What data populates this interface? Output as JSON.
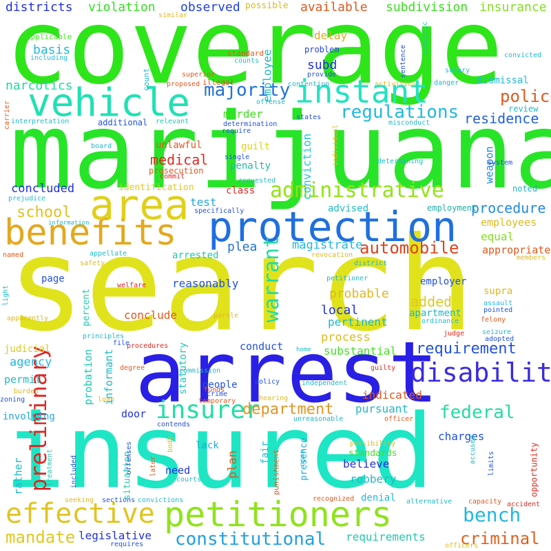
{
  "words": [
    {
      "text": "coverage",
      "color": "#2ee51a"
    },
    {
      "text": "marijuana",
      "color": "#28e428"
    },
    {
      "text": "search",
      "color": "#e0e31b"
    },
    {
      "text": "arrest",
      "color": "#2a1fe4"
    },
    {
      "text": "insured",
      "color": "#1ee6c4"
    },
    {
      "text": "protection",
      "color": "#1f6fe0"
    },
    {
      "text": "vehicle",
      "color": "#20e1b3"
    },
    {
      "text": "benefits",
      "color": "#e3a81e"
    },
    {
      "text": "area",
      "color": "#e0d019"
    },
    {
      "text": "instant",
      "color": "#22e2c2"
    },
    {
      "text": "petitioners",
      "color": "#8fe31c"
    },
    {
      "text": "administrative",
      "color": "#92e319"
    },
    {
      "text": "disability",
      "color": "#3a2be0"
    },
    {
      "text": "effective",
      "color": "#e1c41f"
    },
    {
      "text": "insurer",
      "color": "#1fe0a4"
    },
    {
      "text": "preliminary",
      "color": "#e02622"
    },
    {
      "text": "warrant",
      "color": "#22dca0"
    },
    {
      "text": "regulations",
      "color": "#20b8e0"
    },
    {
      "text": "majority",
      "color": "#1f70e0"
    },
    {
      "text": "police",
      "color": "#e0581e"
    },
    {
      "text": "automobile",
      "color": "#e3401c"
    },
    {
      "text": "department",
      "color": "#e39420"
    },
    {
      "text": "federal",
      "color": "#22dca2"
    },
    {
      "text": "bench",
      "color": "#20b8e0"
    },
    {
      "text": "mandate",
      "color": "#e0c81f"
    },
    {
      "text": "constitutional",
      "color": "#20a0e0"
    },
    {
      "text": "requirement",
      "color": "#2050e0"
    },
    {
      "text": "criminal",
      "color": "#e0601e"
    },
    {
      "text": "residence",
      "color": "#2060e0"
    },
    {
      "text": "school",
      "color": "#e0c21f"
    },
    {
      "text": "procedure",
      "color": "#1f8ae0"
    },
    {
      "text": "medical",
      "color": "#e0281f"
    },
    {
      "text": "districts",
      "color": "#2030e0"
    },
    {
      "text": "violation",
      "color": "#30e01f"
    },
    {
      "text": "observed",
      "color": "#2042e0"
    },
    {
      "text": "available",
      "color": "#e0581e"
    },
    {
      "text": "subdivision",
      "color": "#38e01f"
    },
    {
      "text": "insurance",
      "color": "#82e01f"
    },
    {
      "text": "narcotics",
      "color": "#1fd8a0"
    },
    {
      "text": "basis",
      "color": "#20b8e0"
    },
    {
      "text": "employee",
      "color": "#20b8c8"
    },
    {
      "text": "subd",
      "color": "#2030e0"
    },
    {
      "text": "delay",
      "color": "#e0a81f"
    },
    {
      "text": "problem",
      "color": "#2040e0"
    },
    {
      "text": "murder",
      "color": "#40e01f"
    },
    {
      "text": "dismissal",
      "color": "#20b8e0"
    },
    {
      "text": "review",
      "color": "#20b8c8"
    },
    {
      "text": "concluded",
      "color": "#2030e0"
    },
    {
      "text": "guilt",
      "color": "#e0d01f"
    },
    {
      "text": "penalty",
      "color": "#20b8a8"
    },
    {
      "text": "unlawful",
      "color": "#e0581e"
    },
    {
      "text": "class",
      "color": "#e0281f"
    },
    {
      "text": "test",
      "color": "#1fa8e0"
    },
    {
      "text": "identification",
      "color": "#e0c81f"
    },
    {
      "text": "conviction",
      "color": "#20c8e0"
    },
    {
      "text": "weapon",
      "color": "#1f88e0"
    },
    {
      "text": "noted",
      "color": "#20b0c8"
    },
    {
      "text": "employment",
      "color": "#20b0a8"
    },
    {
      "text": "employees",
      "color": "#e0b81f"
    },
    {
      "text": "advised",
      "color": "#20b8c8"
    },
    {
      "text": "plea",
      "color": "#1f70e0"
    },
    {
      "text": "magistrate",
      "color": "#20b8e0"
    },
    {
      "text": "equal",
      "color": "#82e01f"
    },
    {
      "text": "appropriate",
      "color": "#e0581e"
    },
    {
      "text": "arrested",
      "color": "#20c8b0"
    },
    {
      "text": "reasonably",
      "color": "#2050e0"
    },
    {
      "text": "page",
      "color": "#2050e0"
    },
    {
      "text": "probable",
      "color": "#e0b81f"
    },
    {
      "text": "local",
      "color": "#2030e0"
    },
    {
      "text": "added",
      "color": "#e0c81f"
    },
    {
      "text": "employer",
      "color": "#2050e0"
    },
    {
      "text": "supra",
      "color": "#e0b81f"
    },
    {
      "text": "apartment",
      "color": "#20b8c8"
    },
    {
      "text": "conclude",
      "color": "#e0581e"
    },
    {
      "text": "percent",
      "color": "#20c8b0"
    },
    {
      "text": "pertinent",
      "color": "#20b8c8"
    },
    {
      "text": "process",
      "color": "#e0b81f"
    },
    {
      "text": "substantial",
      "color": "#40e01f"
    },
    {
      "text": "conduct",
      "color": "#2050e0"
    },
    {
      "text": "judicial",
      "color": "#e0c81f"
    },
    {
      "text": "agency",
      "color": "#20b8e0"
    },
    {
      "text": "statutory",
      "color": "#20c8b0"
    },
    {
      "text": "probation",
      "color": "#20c8b0"
    },
    {
      "text": "informant",
      "color": "#20b8c8"
    },
    {
      "text": "permit",
      "color": "#20b8c8"
    },
    {
      "text": "people",
      "color": "#2050e0"
    },
    {
      "text": "door",
      "color": "#2030e0"
    },
    {
      "text": "involving",
      "color": "#1fa8e0"
    },
    {
      "text": "pursuant",
      "color": "#20b8c8"
    },
    {
      "text": "indicated",
      "color": "#e0581e"
    },
    {
      "text": "charges",
      "color": "#2050e0"
    },
    {
      "text": "plan",
      "color": "#e0581e"
    },
    {
      "text": "believe",
      "color": "#2030e0"
    },
    {
      "text": "lack",
      "color": "#1fa8e0"
    },
    {
      "text": "need",
      "color": "#2030e0"
    },
    {
      "text": "fair",
      "color": "#20b8e0"
    },
    {
      "text": "presence",
      "color": "#1fa8e0"
    },
    {
      "text": "rather",
      "color": "#20b8c8"
    },
    {
      "text": "robbery",
      "color": "#20b8c8"
    },
    {
      "text": "standards",
      "color": "#40e01f"
    },
    {
      "text": "denial",
      "color": "#20b8e0"
    },
    {
      "text": "situation",
      "color": "#20c8b0"
    },
    {
      "text": "requirements",
      "color": "#20c8b0"
    },
    {
      "text": "legislative",
      "color": "#2030e0"
    },
    {
      "text": "punishment",
      "color": "#e0581e"
    },
    {
      "text": "opportunity",
      "color": "#e0281f"
    },
    {
      "text": "similar",
      "color": "#e0b81f"
    },
    {
      "text": "possible",
      "color": "#e0b81f"
    },
    {
      "text": "applicable",
      "color": "#40e01f"
    },
    {
      "text": "including",
      "color": "#20b8e0"
    },
    {
      "text": "standard",
      "color": "#e0581e"
    },
    {
      "text": "counts",
      "color": "#20b8c8"
    },
    {
      "text": "superior",
      "color": "#e0581e"
    },
    {
      "text": "proposed",
      "color": "#e0581e"
    },
    {
      "text": "illegal",
      "color": "#e0581e"
    },
    {
      "text": "count",
      "color": "#20b8c8"
    },
    {
      "text": "offense",
      "color": "#20b8c8"
    },
    {
      "text": "contention",
      "color": "#20b8c8"
    },
    {
      "text": "activities",
      "color": "#e0b81f"
    },
    {
      "text": "sentence",
      "color": "#2050e0"
    },
    {
      "text": "specific",
      "color": "#20c8b0"
    },
    {
      "text": "salary",
      "color": "#20b8e0"
    },
    {
      "text": "convicted",
      "color": "#20b8c8"
    },
    {
      "text": "provide",
      "color": "#2050e0"
    },
    {
      "text": "danger",
      "color": "#20b8c8"
    },
    {
      "text": "carrier",
      "color": "#e0581e"
    },
    {
      "text": "interpretation",
      "color": "#20b8c8"
    },
    {
      "text": "additional",
      "color": "#2050e0"
    },
    {
      "text": "relevant",
      "color": "#20c8b0"
    },
    {
      "text": "determination",
      "color": "#2050e0"
    },
    {
      "text": "states",
      "color": "#2050e0"
    },
    {
      "text": "misconduct",
      "color": "#20b8c8"
    },
    {
      "text": "require",
      "color": "#2050e0"
    },
    {
      "text": "individual",
      "color": "#e0b81f"
    },
    {
      "text": "determining",
      "color": "#20b8c8"
    },
    {
      "text": "system",
      "color": "#2050e0"
    },
    {
      "text": "board",
      "color": "#20b8c8"
    },
    {
      "text": "single",
      "color": "#2050e0"
    },
    {
      "text": "prosecution",
      "color": "#e0581e"
    },
    {
      "text": "commit",
      "color": "#e0281f"
    },
    {
      "text": "requested",
      "color": "#20b8c8"
    },
    {
      "text": "prejudice",
      "color": "#20b8e0"
    },
    {
      "text": "specifically",
      "color": "#2050e0"
    },
    {
      "text": "information",
      "color": "#20b8c8"
    },
    {
      "text": "named",
      "color": "#e0581e"
    },
    {
      "text": "appellate",
      "color": "#20b8c8"
    },
    {
      "text": "safety",
      "color": "#e0b81f"
    },
    {
      "text": "revocation",
      "color": "#e0b81f"
    },
    {
      "text": "district",
      "color": "#20b8c8"
    },
    {
      "text": "members",
      "color": "#e0b81f"
    },
    {
      "text": "light",
      "color": "#20b8c8"
    },
    {
      "text": "welfare",
      "color": "#e0281f"
    },
    {
      "text": "petitioner",
      "color": "#20b8c8"
    },
    {
      "text": "assault",
      "color": "#20b8e0"
    },
    {
      "text": "pointed",
      "color": "#2050e0"
    },
    {
      "text": "ordinance",
      "color": "#20b8e0"
    },
    {
      "text": "felony",
      "color": "#e0581e"
    },
    {
      "text": "apparently",
      "color": "#e0b81f"
    },
    {
      "text": "parole",
      "color": "#e0b81f"
    },
    {
      "text": "seizure",
      "color": "#20b8c8"
    },
    {
      "text": "judge",
      "color": "#e0281f"
    },
    {
      "text": "adopted",
      "color": "#2050e0"
    },
    {
      "text": "principles",
      "color": "#20b8c8"
    },
    {
      "text": "procedures",
      "color": "#e0281f"
    },
    {
      "text": "file",
      "color": "#2050e0"
    },
    {
      "text": "degree",
      "color": "#e0581e"
    },
    {
      "text": "home",
      "color": "#20b8c8"
    },
    {
      "text": "commission",
      "color": "#20b8c8"
    },
    {
      "text": "guilty",
      "color": "#e0281f"
    },
    {
      "text": "policy",
      "color": "#2050e0"
    },
    {
      "text": "independent",
      "color": "#20b8c8"
    },
    {
      "text": "funds",
      "color": "#e0581e"
    },
    {
      "text": "crime",
      "color": "#2050e0"
    },
    {
      "text": "temporary",
      "color": "#e0581e"
    },
    {
      "text": "hearing",
      "color": "#e0b81f"
    },
    {
      "text": "zoning",
      "color": "#2050e0"
    },
    {
      "text": "burden",
      "color": "#e0b81f"
    },
    {
      "text": "loan",
      "color": "#e0b81f"
    },
    {
      "text": "unreasonable",
      "color": "#20b8c8"
    },
    {
      "text": "officer",
      "color": "#e0581e"
    },
    {
      "text": "body",
      "color": "#e0b81f"
    },
    {
      "text": "contends",
      "color": "#2050e0"
    },
    {
      "text": "treatment",
      "color": "#20c8b0"
    },
    {
      "text": "included",
      "color": "#2050e0"
    },
    {
      "text": "offenses",
      "color": "#2050e0"
    },
    {
      "text": "later",
      "color": "#e0581e"
    },
    {
      "text": "courts",
      "color": "#20b8c8"
    },
    {
      "text": "open",
      "color": "#20b8c8"
    },
    {
      "text": "possibility",
      "color": "#e0b81f"
    },
    {
      "text": "accused",
      "color": "#20b8c8"
    },
    {
      "text": "limits",
      "color": "#2050e0"
    },
    {
      "text": "seeking",
      "color": "#e0b81f"
    },
    {
      "text": "sections",
      "color": "#2050e0"
    },
    {
      "text": "convictions",
      "color": "#20b8c8"
    },
    {
      "text": "recognized",
      "color": "#e0581e"
    },
    {
      "text": "alternative",
      "color": "#20b8c8"
    },
    {
      "text": "capacity",
      "color": "#e0581e"
    },
    {
      "text": "accident",
      "color": "#e0281f"
    },
    {
      "text": "officers",
      "color": "#e0b81f"
    },
    {
      "text": "requires",
      "color": "#2050e0"
    }
  ]
}
